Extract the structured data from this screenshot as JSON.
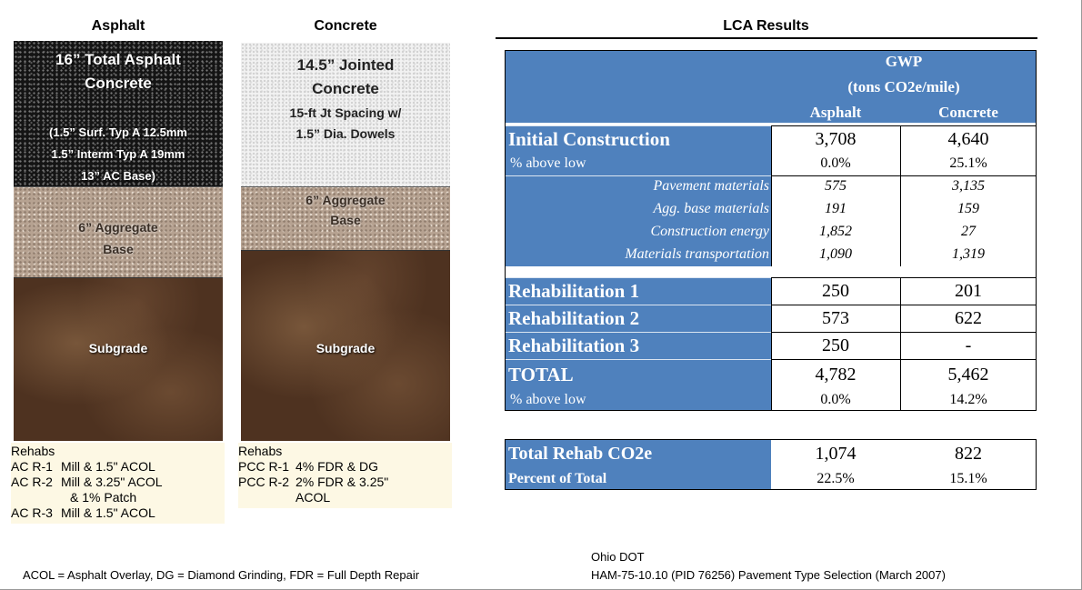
{
  "asphalt": {
    "heading": "Asphalt",
    "surface_lines": [
      "16” Total Asphalt",
      "Concrete",
      "(1.5” Surf. Typ A 12.5mm",
      "1.5” Interm  Typ A 19mm",
      "13” AC Base)"
    ],
    "base_lines": [
      "6” Aggregate",
      "Base"
    ],
    "subgrade": "Subgrade",
    "rehabs": {
      "title": "Rehabs",
      "items": [
        {
          "code": "AC R-1",
          "desc": [
            "Mill & 1.5\" ACOL"
          ]
        },
        {
          "code": "AC R-2",
          "desc": [
            "Mill & 3.25\" ACOL",
            "& 1% Patch"
          ]
        },
        {
          "code": "AC R-3",
          "desc": [
            "Mill & 1.5\" ACOL"
          ]
        }
      ]
    }
  },
  "concrete": {
    "heading": "Concrete",
    "surface_lines": [
      "14.5” Jointed",
      "Concrete",
      "15-ft Jt Spacing w/",
      "1.5” Dia. Dowels"
    ],
    "base_lines": [
      "6” Aggregate",
      "Base"
    ],
    "subgrade": "Subgrade",
    "rehabs": {
      "title": "Rehabs",
      "items": [
        {
          "code": "PCC R-1",
          "desc": [
            "4% FDR & DG"
          ]
        },
        {
          "code": "PCC R-2",
          "desc": [
            "2% FDR & 3.25\"",
            "ACOL"
          ]
        }
      ]
    }
  },
  "lca": {
    "title": "LCA Results",
    "header": {
      "group": "GWP",
      "units": "(tons CO2e/mile)",
      "columns": [
        "Asphalt",
        "Concrete"
      ]
    },
    "initial": {
      "label": "Initial Construction",
      "values": [
        "3,708",
        "4,640"
      ]
    },
    "initial_pct": {
      "label": "% above low",
      "values": [
        "0.0%",
        "25.1%"
      ]
    },
    "components": [
      {
        "label": "Pavement materials",
        "values": [
          "575",
          "3,135"
        ]
      },
      {
        "label": "Agg. base materials",
        "values": [
          "191",
          "159"
        ]
      },
      {
        "label": "Construction energy",
        "values": [
          "1,852",
          "27"
        ]
      },
      {
        "label": "Materials transportation",
        "values": [
          "1,090",
          "1,319"
        ]
      }
    ],
    "rehabs": [
      {
        "label": "Rehabilitation 1",
        "values": [
          "250",
          "201"
        ]
      },
      {
        "label": "Rehabilitation 2",
        "values": [
          "573",
          "622"
        ]
      },
      {
        "label": "Rehabilitation 3",
        "values": [
          "250",
          "-"
        ]
      }
    ],
    "total": {
      "label": "TOTAL",
      "values": [
        "4,782",
        "5,462"
      ]
    },
    "total_pct": {
      "label": "% above low",
      "values": [
        "0.0%",
        "14.2%"
      ]
    },
    "summary": [
      {
        "label": "Total Rehab CO2e",
        "values": [
          "1,074",
          "822"
        ]
      },
      {
        "label": "Percent of Total",
        "values": [
          "22.5%",
          "15.1%"
        ]
      }
    ]
  },
  "footer": {
    "note": "ACOL = Asphalt Overlay, DG = Diamond Grinding, FDR = Full Depth Repair",
    "source_lines": [
      "Ohio DOT",
      "HAM-75-10.10 (PID 76256) Pavement Type Selection (March 2007)"
    ]
  }
}
